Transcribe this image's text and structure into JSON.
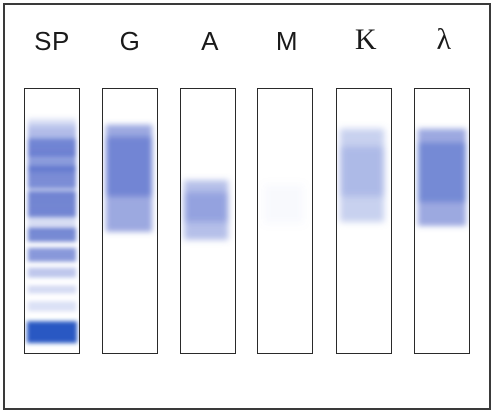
{
  "lanes": [
    {
      "id": "sp",
      "label": "SP"
    },
    {
      "id": "g",
      "label": "G"
    },
    {
      "id": "a",
      "label": "A"
    },
    {
      "id": "m",
      "label": "M"
    },
    {
      "id": "k",
      "label": "K"
    },
    {
      "id": "lambda",
      "label": "λ"
    }
  ],
  "colors": {
    "stain": "#3f5cc6",
    "stain_dark": "#1e4fc0",
    "frame": "#3a3a3a",
    "background": "#ffffff"
  }
}
